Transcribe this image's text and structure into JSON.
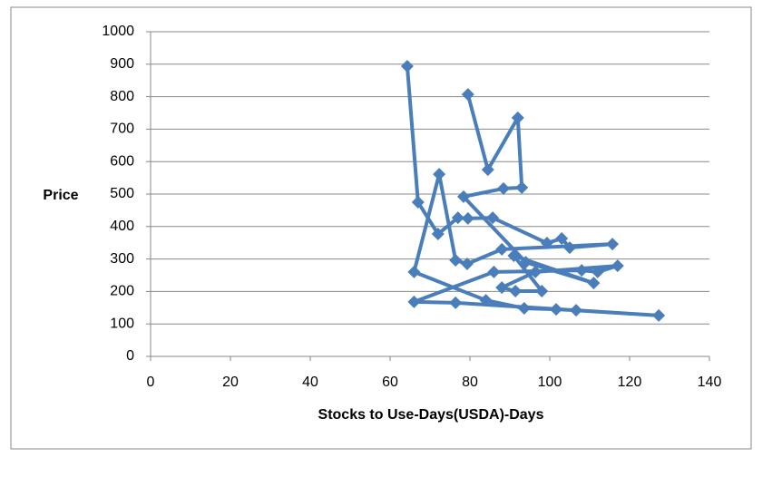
{
  "chart_data": {
    "type": "scatter",
    "lines": true,
    "x_label": "Stocks to Use-Days(USDA)-Days",
    "y_label": "Price",
    "x": [
      64.3,
      67,
      72,
      77,
      79.5,
      85.7,
      99.3,
      103,
      105,
      115.7,
      88,
      79.3,
      76.4,
      72.3,
      66,
      84,
      93.6,
      101.6,
      106.6,
      127.3,
      76.4,
      66,
      86,
      108,
      112,
      117,
      96.4,
      88,
      91.4,
      98,
      91,
      111,
      94,
      78.4,
      88.4,
      93,
      92,
      84.5,
      79.5
    ],
    "values": [
      894,
      475,
      377,
      427,
      425,
      427,
      349,
      363,
      335,
      346,
      330,
      285,
      296,
      561,
      260,
      173,
      148,
      145,
      142,
      126,
      165,
      168,
      260,
      265,
      260,
      279,
      260,
      212,
      201,
      201,
      310,
      226,
      290,
      492,
      517,
      520,
      735,
      575,
      807
    ],
    "color": "#4a7ebb",
    "xlim": [
      0,
      140
    ],
    "xticks": [
      0,
      20,
      40,
      60,
      80,
      100,
      120,
      140
    ],
    "ylim": [
      0,
      1000
    ],
    "yticks": [
      0,
      100,
      200,
      300,
      400,
      500,
      600,
      700,
      800,
      900,
      1000
    ],
    "grid": true
  }
}
